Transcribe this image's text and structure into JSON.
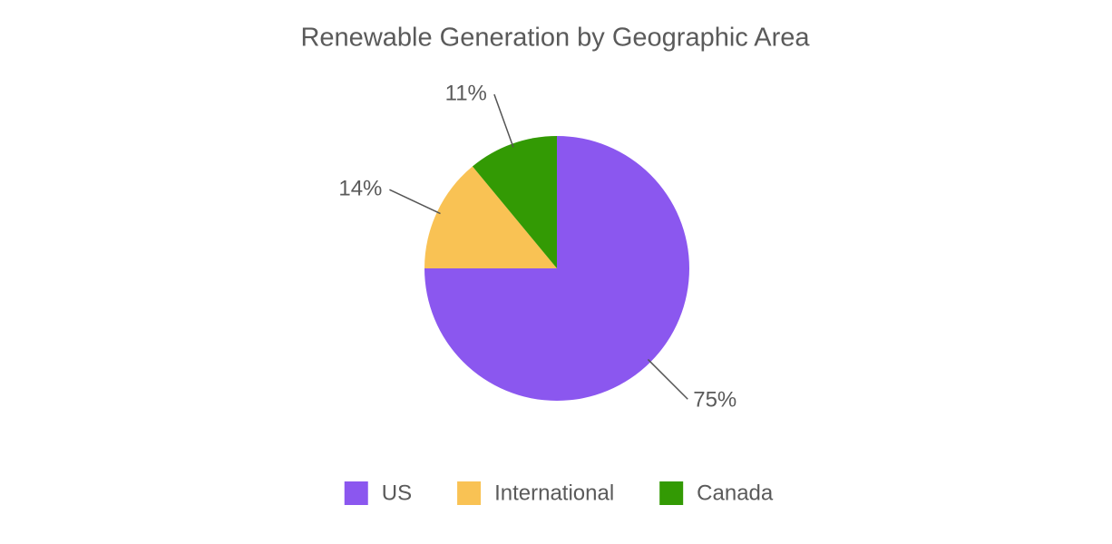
{
  "chart_data": {
    "type": "pie",
    "title": "Renewable Generation by Geographic Area",
    "categories": [
      "US",
      "International",
      "Canada"
    ],
    "values": [
      75,
      14,
      11
    ],
    "value_labels": [
      "75%",
      "14%",
      "11%"
    ],
    "colors": [
      "#8b57ef",
      "#f9c254",
      "#339a04"
    ],
    "legend": "bottom"
  }
}
